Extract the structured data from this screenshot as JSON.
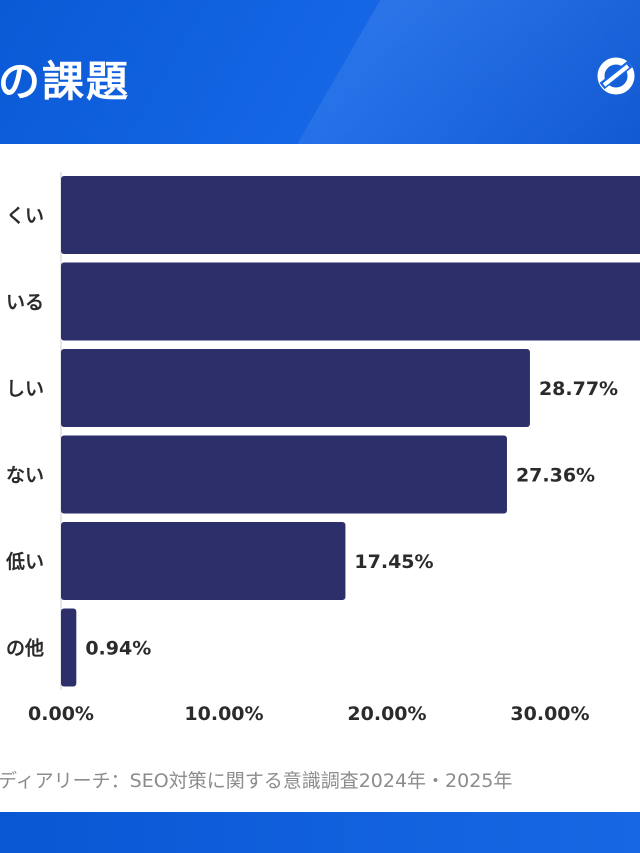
{
  "header": {
    "title": "の課題"
  },
  "source": "ディアリーチ：SEO対策に関する意識調査2024年・2025年",
  "colors": {
    "bar": "#2d2f6b",
    "header": "#0a5ad6",
    "text": "#2b2b2b"
  },
  "chart_data": {
    "type": "bar",
    "orientation": "horizontal",
    "categories": [
      "くい",
      "いる",
      "しい",
      "ない",
      "低い",
      "の他"
    ],
    "values": [
      null,
      null,
      28.77,
      27.36,
      17.45,
      0.94
    ],
    "value_labels": [
      "",
      "",
      "28.77%",
      "27.36%",
      "17.45%",
      "0.94%"
    ],
    "xticks": [
      "0.00%",
      "10.00%",
      "20.00%",
      "30.00%"
    ],
    "xlim": [
      0,
      35
    ],
    "title": "",
    "xlabel": "",
    "ylabel": ""
  }
}
